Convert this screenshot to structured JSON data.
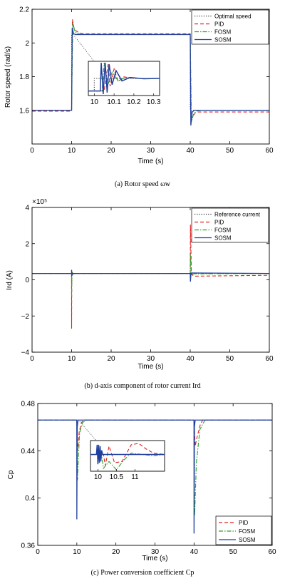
{
  "chart_data": [
    {
      "type": "line",
      "caption": "(a) Rotor speed ωw",
      "xlabel": "Time (s)",
      "ylabel": "Rotor speed (rad/s)",
      "xlim": [
        0,
        60
      ],
      "ylim": [
        1.4,
        2.2
      ],
      "xticks": [
        "0",
        "10",
        "20",
        "30",
        "40",
        "50",
        "60"
      ],
      "yticks": [
        "1.6",
        "1.8",
        "2",
        "2.2"
      ],
      "legend_position": "top-right",
      "series": [
        {
          "name": "Optimal speed",
          "color": "#333333",
          "style": "dotted",
          "x": [
            0,
            10,
            10.01,
            40,
            40.01,
            60
          ],
          "y": [
            1.6,
            1.6,
            2.05,
            2.05,
            1.6,
            1.6
          ]
        },
        {
          "name": "PID",
          "color": "#e02020",
          "style": "dashed",
          "x": [
            0,
            10,
            10.2,
            10.6,
            11.2,
            12,
            13,
            40,
            40.2,
            40.6,
            41.2,
            42,
            43,
            60
          ],
          "y": [
            1.595,
            1.595,
            2.14,
            2.09,
            2.07,
            2.06,
            2.055,
            2.055,
            1.55,
            1.56,
            1.585,
            1.59,
            1.59,
            1.59
          ]
        },
        {
          "name": "FOSM",
          "color": "#2ca02c",
          "style": "dashdot",
          "x": [
            0,
            10,
            10.3,
            10.8,
            11.5,
            13,
            40,
            40.3,
            40.8,
            41.5,
            43,
            60
          ],
          "y": [
            1.6,
            1.6,
            2.12,
            2.07,
            2.055,
            2.05,
            2.05,
            1.53,
            1.575,
            1.595,
            1.6,
            1.6
          ]
        },
        {
          "name": "SOSM",
          "color": "#1f3fa0",
          "style": "solid",
          "x": [
            0,
            10,
            10.15,
            10.5,
            11,
            40,
            40.15,
            40.5,
            41,
            60
          ],
          "y": [
            1.6,
            1.6,
            2.09,
            2.055,
            2.05,
            2.05,
            1.51,
            1.59,
            1.6,
            1.6
          ]
        }
      ],
      "inset": {
        "xlim": [
          9.97,
          10.33
        ],
        "xticks": [
          "10",
          "10.1",
          "10.2",
          "10.3"
        ],
        "series": [
          {
            "name": "Optimal speed",
            "x": [
              9.97,
              10,
              10,
              10.33
            ],
            "y": [
              0.1,
              0.1,
              0.5,
              0.5
            ]
          },
          {
            "name": "PID",
            "x": [
              9.97,
              10.05,
              10.07,
              10.08,
              10.1,
              10.12,
              10.15,
              10.2,
              10.33
            ],
            "y": [
              0.1,
              0.1,
              0.95,
              0.25,
              0.8,
              0.4,
              0.55,
              0.5,
              0.5
            ]
          },
          {
            "name": "FOSM",
            "x": [
              9.97,
              10.04,
              10.05,
              10.07,
              10.09,
              10.12,
              10.16,
              10.22,
              10.33
            ],
            "y": [
              0.1,
              0.1,
              1.0,
              0.3,
              0.7,
              0.42,
              0.53,
              0.5,
              0.5
            ]
          },
          {
            "name": "SOSM",
            "x": [
              9.97,
              10.03,
              10.035,
              10.045,
              10.055,
              10.065,
              10.075,
              10.09,
              10.11,
              10.14,
              10.18,
              10.25,
              10.33
            ],
            "y": [
              0.1,
              0.1,
              1.0,
              0.0,
              1.0,
              0.05,
              0.95,
              0.3,
              0.75,
              0.42,
              0.53,
              0.49,
              0.5
            ]
          }
        ]
      }
    },
    {
      "type": "line",
      "caption": "(b) d-axis component of rotor current Ird",
      "xlabel": "Time (s)",
      "ylabel": "Ird (A)",
      "scale_label": "×10⁵",
      "xlim": [
        0,
        60
      ],
      "ylim": [
        -4,
        4
      ],
      "xticks": [
        "0",
        "10",
        "20",
        "30",
        "40",
        "50",
        "60"
      ],
      "yticks": [
        "−4",
        "−2",
        "0",
        "2",
        "4"
      ],
      "legend_position": "top-right",
      "series": [
        {
          "name": "Reference current",
          "color": "#333333",
          "style": "dotted",
          "x": [
            0,
            60
          ],
          "y": [
            0.35,
            0.35
          ]
        },
        {
          "name": "PID",
          "color": "#e02020",
          "style": "dashed",
          "x": [
            0,
            9.99,
            10,
            10.05,
            10.3,
            11,
            40,
            40.05,
            40.3,
            41,
            60
          ],
          "y": [
            0.35,
            0.35,
            -2.7,
            0.5,
            0.32,
            0.35,
            0.35,
            3.05,
            0.3,
            0.2,
            0.25
          ]
        },
        {
          "name": "FOSM",
          "color": "#2ca02c",
          "style": "dashdot",
          "x": [
            0,
            9.99,
            10,
            10.1,
            10.4,
            11,
            40,
            40.05,
            40.3,
            41,
            60
          ],
          "y": [
            0.35,
            0.35,
            -0.9,
            0.45,
            0.33,
            0.35,
            0.35,
            1.4,
            0.3,
            0.33,
            0.35
          ]
        },
        {
          "name": "SOSM",
          "color": "#1f3fa0",
          "style": "solid",
          "x": [
            0,
            9.99,
            10,
            10.05,
            10.2,
            40,
            40.05,
            40.2,
            60
          ],
          "y": [
            0.35,
            0.35,
            0.55,
            0.2,
            0.35,
            0.35,
            -0.1,
            0.38,
            0.35
          ]
        }
      ]
    },
    {
      "type": "line",
      "caption": "(c) Power conversion coefficient Cp",
      "xlabel": "Time (s)",
      "ylabel": "Cp",
      "xlim": [
        0,
        60
      ],
      "ylim": [
        0.36,
        0.48
      ],
      "xticks": [
        "0",
        "10",
        "20",
        "30",
        "40",
        "50",
        "60"
      ],
      "yticks": [
        "0.36",
        "0.4",
        "0.44",
        "0.48"
      ],
      "legend_position": "bottom-right",
      "series": [
        {
          "name": "PID",
          "color": "#e02020",
          "style": "dashed",
          "x": [
            0,
            10,
            10.2,
            10.6,
            11.2,
            11.8,
            40,
            40.3,
            40.8,
            41.6,
            42.2,
            60
          ],
          "y": [
            0.466,
            0.466,
            0.44,
            0.456,
            0.464,
            0.466,
            0.466,
            0.444,
            0.452,
            0.462,
            0.466,
            0.466
          ]
        },
        {
          "name": "FOSM",
          "color": "#2ca02c",
          "style": "dashdot",
          "x": [
            0,
            10,
            10.15,
            10.7,
            11.5,
            12.5,
            40,
            40.15,
            40.6,
            41.5,
            42.8,
            60
          ],
          "y": [
            0.466,
            0.466,
            0.415,
            0.455,
            0.464,
            0.466,
            0.466,
            0.385,
            0.43,
            0.458,
            0.466,
            0.466
          ]
        },
        {
          "name": "SOSM",
          "color": "#1f3fa0",
          "style": "solid",
          "x": [
            0,
            9.99,
            10,
            10.1,
            10.3,
            39.99,
            40,
            40.1,
            40.3,
            60
          ],
          "y": [
            0.466,
            0.466,
            0.382,
            0.46,
            0.466,
            0.466,
            0.37,
            0.46,
            0.466,
            0.466
          ]
        }
      ],
      "inset": {
        "xlim": [
          9.8,
          11.8
        ],
        "xticks": [
          "10",
          "10.5",
          "11"
        ],
        "series": [
          {
            "name": "PID",
            "x": [
              9.8,
              10.15,
              10.2,
              10.3,
              10.45,
              10.65,
              10.9,
              11.1,
              11.3,
              11.5,
              11.8
            ],
            "y": [
              0.55,
              0.55,
              0.15,
              0.85,
              0.25,
              0.3,
              0.9,
              0.95,
              0.75,
              0.6,
              0.55
            ]
          },
          {
            "name": "FOSM",
            "x": [
              9.8,
              10.1,
              10.15,
              10.3,
              10.5,
              10.7,
              10.9,
              11.2,
              11.5,
              11.8
            ],
            "y": [
              0.55,
              0.55,
              0.05,
              0.3,
              0.0,
              0.35,
              0.6,
              0.55,
              0.5,
              0.55
            ]
          },
          {
            "name": "SOSM",
            "x": [
              9.8,
              9.96,
              9.98,
              10.0,
              10.02,
              10.04,
              10.06,
              10.08,
              10.1,
              10.13,
              11.8
            ],
            "y": [
              0.55,
              0.55,
              0.9,
              0.2,
              0.9,
              0.25,
              0.85,
              0.3,
              0.7,
              0.55,
              0.55
            ]
          }
        ]
      }
    }
  ]
}
